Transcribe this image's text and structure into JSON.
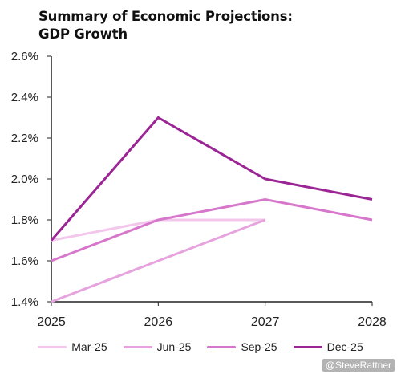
{
  "title_lines": [
    "Summary of Economic Projections:",
    "GDP Growth"
  ],
  "credit": "@SteveRattner",
  "chart_data": {
    "type": "line",
    "title": "Summary of Economic Projections: GDP Growth",
    "xlabel": "",
    "ylabel": "",
    "x": [
      2025,
      2026,
      2027,
      2028
    ],
    "x_tick_labels": [
      "2025",
      "2026",
      "2027",
      "2028"
    ],
    "ylim": [
      1.4,
      2.6
    ],
    "y_ticks": [
      1.4,
      1.6,
      1.8,
      2.0,
      2.2,
      2.4,
      2.6
    ],
    "y_tick_labels": [
      "1.4%",
      "1.6%",
      "1.8%",
      "2.0%",
      "2.2%",
      "2.4%",
      "2.6%"
    ],
    "grid": false,
    "legend_position": "bottom",
    "series": [
      {
        "name": "Mar-25",
        "color": "#f3c6eb",
        "x": [
          2025,
          2026,
          2027
        ],
        "values": [
          1.7,
          1.8,
          1.8
        ]
      },
      {
        "name": "Jun-25",
        "color": "#e6a3de",
        "x": [
          2025,
          2026,
          2027
        ],
        "values": [
          1.4,
          1.6,
          1.8
        ]
      },
      {
        "name": "Sep-25",
        "color": "#d677cc",
        "x": [
          2025,
          2026,
          2027,
          2028
        ],
        "values": [
          1.6,
          1.8,
          1.9,
          1.8
        ]
      },
      {
        "name": "Dec-25",
        "color": "#9b2595",
        "x": [
          2025,
          2026,
          2027,
          2028
        ],
        "values": [
          1.7,
          2.3,
          2.0,
          1.9
        ]
      }
    ]
  }
}
